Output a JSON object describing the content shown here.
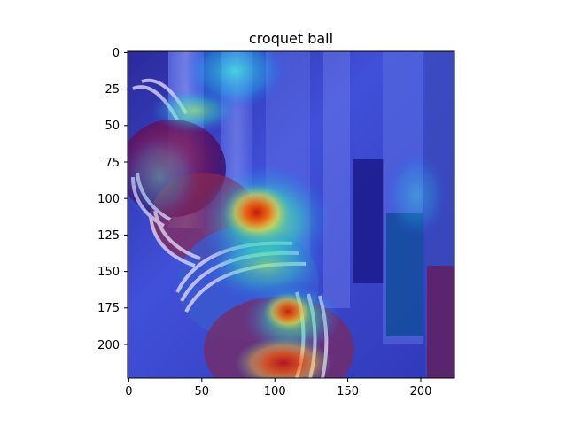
{
  "figure": {
    "title": "croquet ball",
    "x_ticks": [
      "0",
      "50",
      "100",
      "150",
      "200"
    ],
    "y_ticks": [
      "0",
      "25",
      "50",
      "75",
      "100",
      "125",
      "150",
      "175",
      "200"
    ]
  },
  "colors": {
    "axes": "#000000",
    "background": "#ffffff"
  }
}
